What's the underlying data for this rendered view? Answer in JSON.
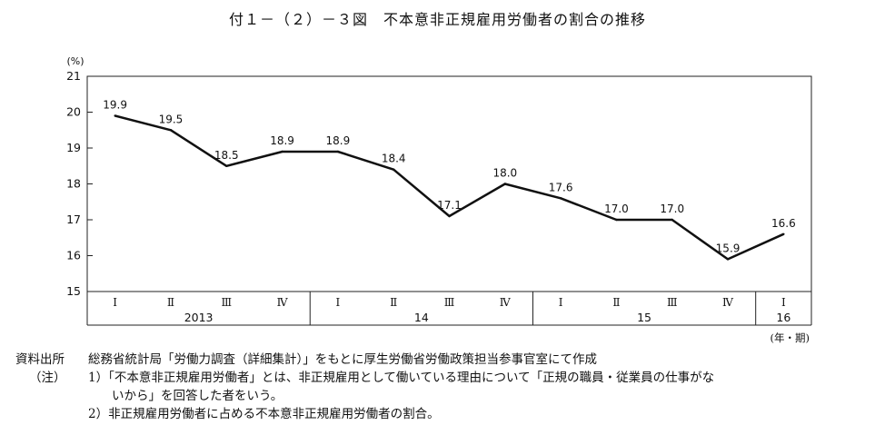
{
  "title": "付１－（２）－３図　不本意非正規雇用労働者の割合の推移",
  "chart_data": {
    "type": "line",
    "yunit": "(%)",
    "ylim": [
      15,
      21
    ],
    "yticks": [
      15,
      16,
      17,
      18,
      19,
      20,
      21
    ],
    "grid": false,
    "xunit": "(年・期)",
    "quarters": [
      "Ⅰ",
      "Ⅱ",
      "Ⅲ",
      "Ⅳ",
      "Ⅰ",
      "Ⅱ",
      "Ⅲ",
      "Ⅳ",
      "Ⅰ",
      "Ⅱ",
      "Ⅲ",
      "Ⅳ",
      "Ⅰ"
    ],
    "years": [
      {
        "label": "2013",
        "start": 0,
        "count": 4
      },
      {
        "label": "14",
        "start": 4,
        "count": 4
      },
      {
        "label": "15",
        "start": 8,
        "count": 4
      },
      {
        "label": "16",
        "start": 12,
        "count": 1
      }
    ],
    "series": [
      {
        "values": [
          19.9,
          19.5,
          18.5,
          18.9,
          18.9,
          18.4,
          17.1,
          18.0,
          17.6,
          17.0,
          17.0,
          15.9,
          16.6
        ],
        "labels": [
          "19.9",
          "19.5",
          "18.5",
          "18.9",
          "18.9",
          "18.4",
          "17.1",
          "18.0",
          "17.6",
          "17.0",
          "17.0",
          "15.9",
          "16.6"
        ],
        "color": "#111111"
      }
    ]
  },
  "notes": {
    "source_label": "資料出所",
    "source_text": "総務省統計局「労働力調査（詳細集計）」をもとに厚生労働省労働政策担当参事官室にて作成",
    "notes_label": "（注）",
    "note1_line1": "1）「不本意非正規雇用労働者」とは、非正規雇用として働いている理由について「正規の職員・従業員の仕事がな",
    "note1_line2": "いから」を回答した者をいう。",
    "note2": "2）非正規雇用労働者に占める不本意非正規雇用労働者の割合。"
  }
}
